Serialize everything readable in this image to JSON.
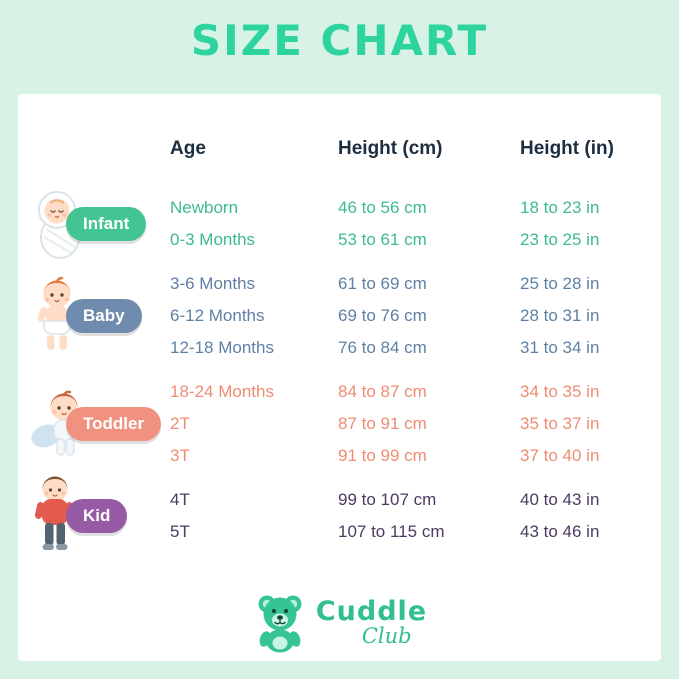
{
  "title": "SIZE CHART",
  "chart_data": {
    "type": "table",
    "title": "SIZE CHART",
    "columns": [
      "Age",
      "Height (cm)",
      "Height (in)"
    ],
    "groups": [
      {
        "label": "Infant",
        "icon": "infant-icon",
        "badge_color": "#43c593",
        "text_color": "#3dbb8d",
        "rows": [
          {
            "age": "Newborn",
            "cm": "46 to 56 cm",
            "in": "18 to 23 in"
          },
          {
            "age": "0-3 Months",
            "cm": "53 to 61 cm",
            "in": "23 to 25 in"
          }
        ]
      },
      {
        "label": "Baby",
        "icon": "baby-icon",
        "badge_color": "#6f8cae",
        "text_color": "#5f80a4",
        "rows": [
          {
            "age": "3-6 Months",
            "cm": "61 to 69 cm",
            "in": "25 to 28 in"
          },
          {
            "age": "6-12 Months",
            "cm": "69 to 76 cm",
            "in": "28 to 31 in"
          },
          {
            "age": "12-18 Months",
            "cm": "76 to 84 cm",
            "in": "31 to 34 in"
          }
        ]
      },
      {
        "label": "Toddler",
        "icon": "toddler-icon",
        "badge_color": "#f19180",
        "text_color": "#ef8c73",
        "rows": [
          {
            "age": "18-24 Months",
            "cm": "84 to 87 cm",
            "in": "34 to 35 in"
          },
          {
            "age": "2T",
            "cm": "87 to 91 cm",
            "in": "35 to 37 in"
          },
          {
            "age": "3T",
            "cm": "91 to 99 cm",
            "in": "37 to 40 in"
          }
        ]
      },
      {
        "label": "Kid",
        "icon": "kid-icon",
        "badge_color": "#975aa5",
        "text_color": "#4b3b62",
        "rows": [
          {
            "age": "4T",
            "cm": "99 to 107 cm",
            "in": "40 to 43 in"
          },
          {
            "age": "5T",
            "cm": "107 to 115 cm",
            "in": "43 to 46 in"
          }
        ]
      }
    ]
  },
  "footer": {
    "brand_top": "Cuddle",
    "brand_bottom": "Club",
    "brand_color": "#2fbf90"
  },
  "colors": {
    "background": "#d8f3e5",
    "card": "#ffffff",
    "title": "#2ed4a0",
    "header_text": "#1c2e40"
  }
}
